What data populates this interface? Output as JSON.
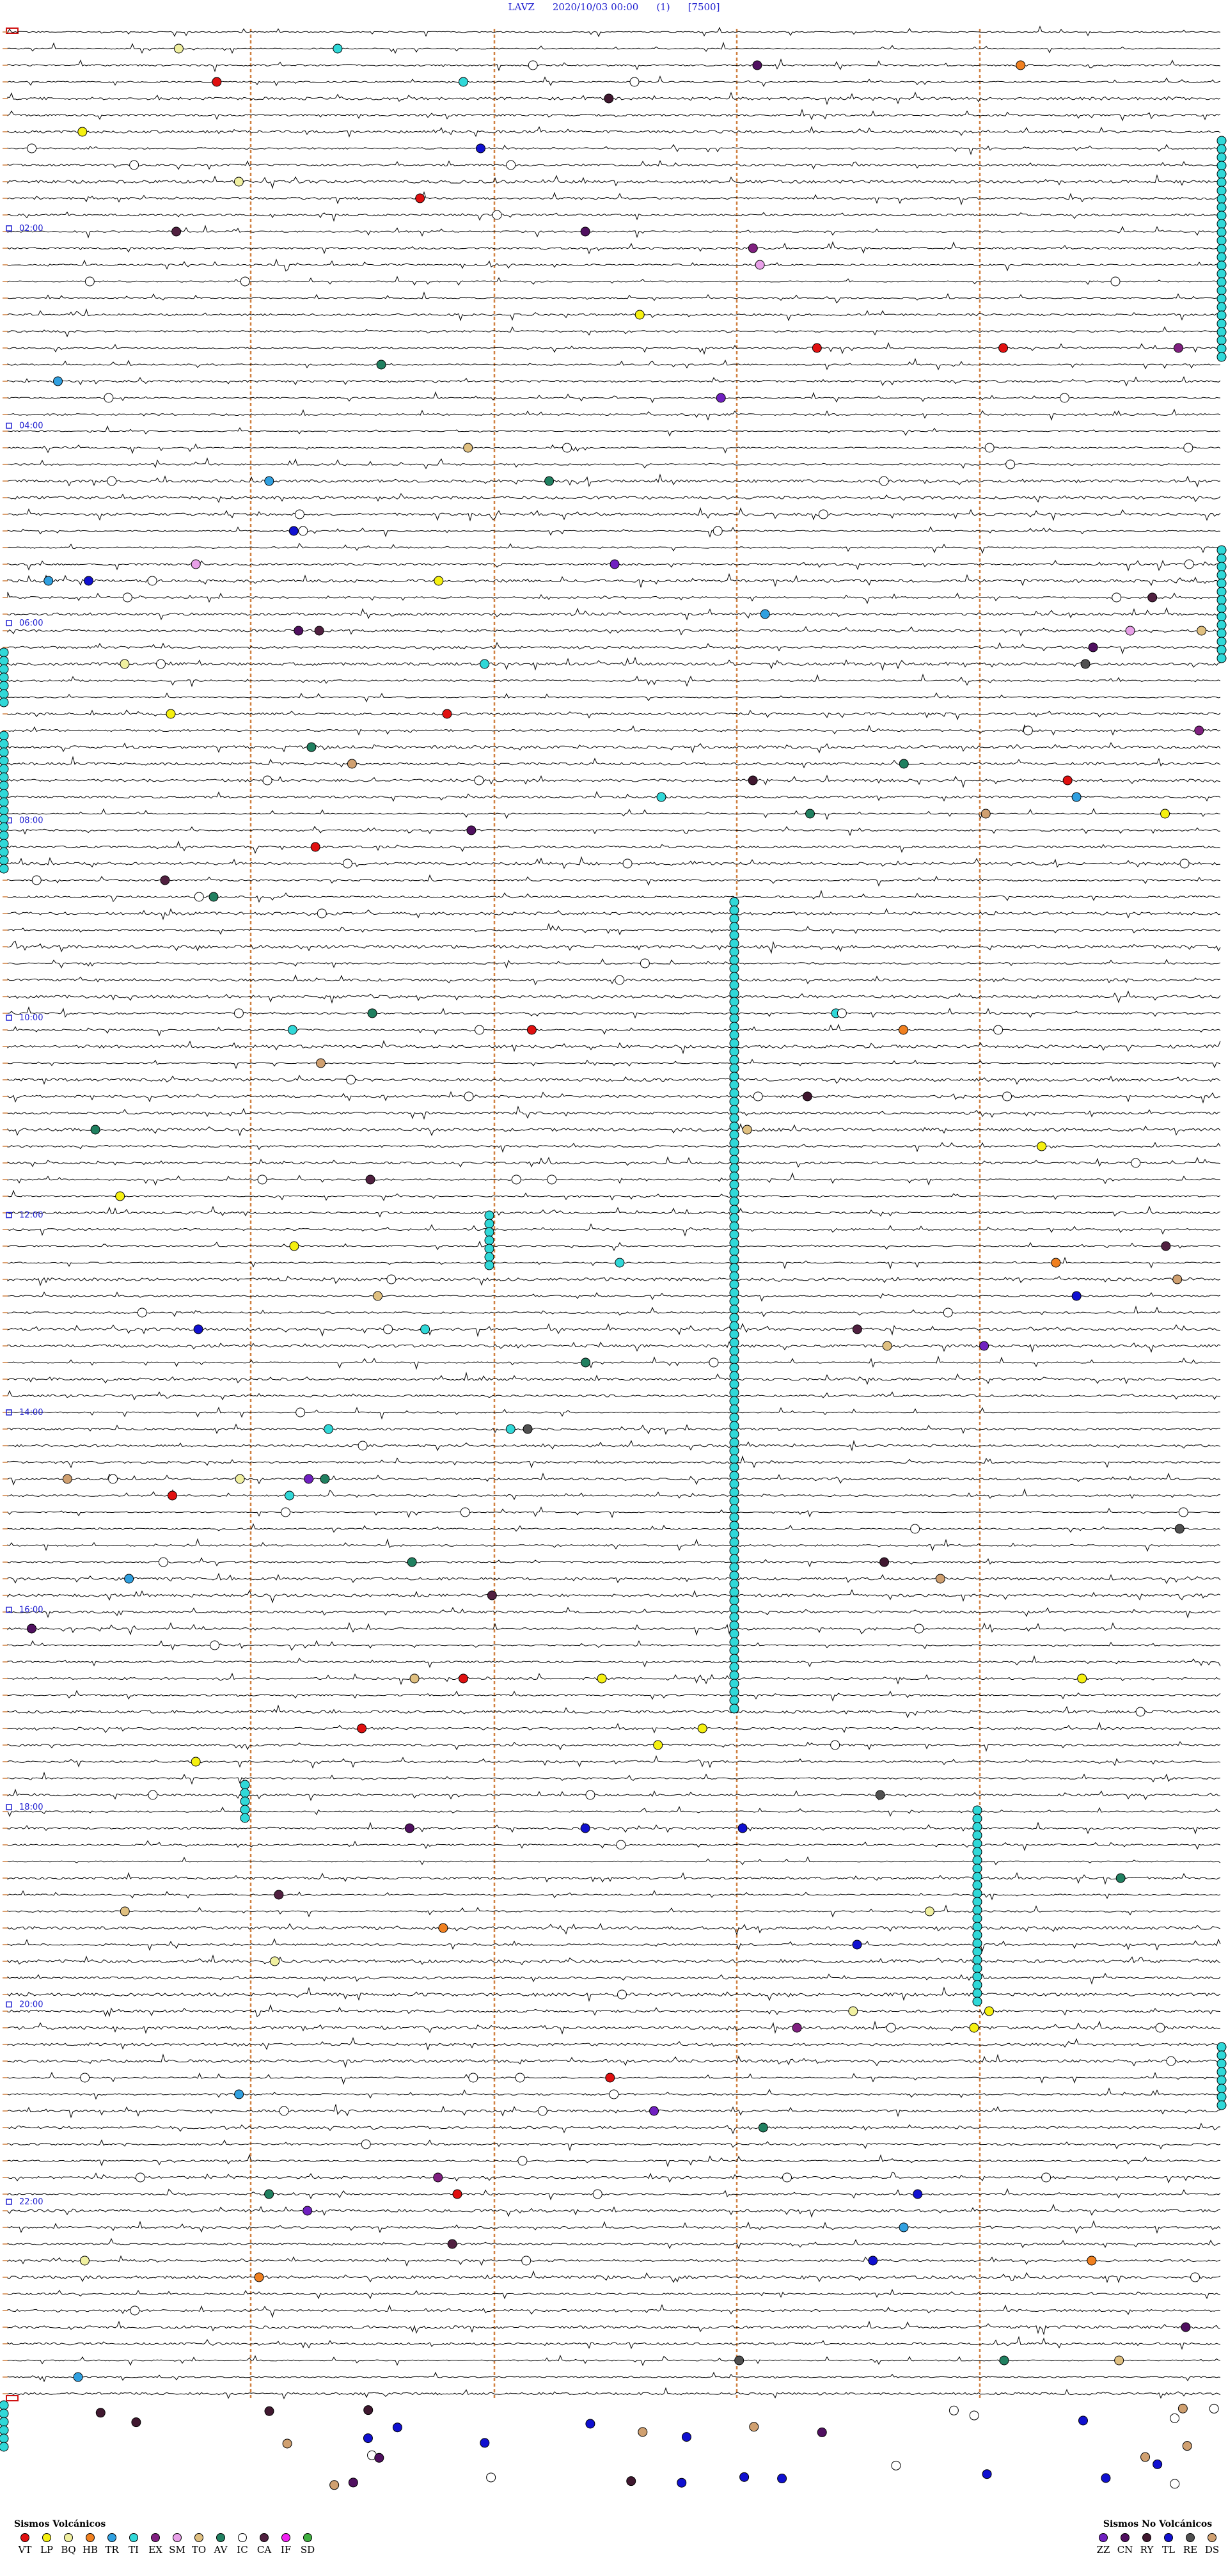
{
  "header": {
    "station": "LAVZ",
    "datetime": "2020/10/03 00:00",
    "channel": "(1)",
    "scale": "[7500]"
  },
  "hour_labels": [
    "02:00",
    "04:00",
    "06:00",
    "08:00",
    "10:00",
    "12:00",
    "14:00",
    "16:00",
    "18:00",
    "20:00",
    "22:00"
  ],
  "colors": {
    "trace": "#000000",
    "hour_marker": "#d08040",
    "label": "#2020d0",
    "VT": "#e01010",
    "LP": "#f5f010",
    "BQ": "#f0f0a0",
    "HB": "#f08020",
    "TR": "#30a0e0",
    "TI": "#30d8d8",
    "EX": "#802080",
    "SM": "#e8a0e8",
    "TO": "#e0c080",
    "AV": "#208060",
    "IC": "#ffffff",
    "CA": "#502040",
    "IF": "#f020f0",
    "SD": "#40b040",
    "ZZ": "#7020c0",
    "CN": "#501060",
    "RY": "#401830",
    "TL": "#1010d0",
    "RE": "#505050",
    "DS": "#d0a070"
  },
  "legend_volcanic": {
    "title": "Sismos Volcánicos",
    "items": [
      "VT",
      "LP",
      "BQ",
      "HB",
      "TR",
      "TI",
      "EX",
      "SM",
      "TO",
      "AV",
      "IC",
      "CA",
      "IF",
      "SD"
    ]
  },
  "legend_nonvolcanic": {
    "title": "Sismos No Volcánicos",
    "items": [
      "ZZ",
      "CN",
      "RY",
      "TL",
      "RE",
      "DS"
    ]
  }
}
